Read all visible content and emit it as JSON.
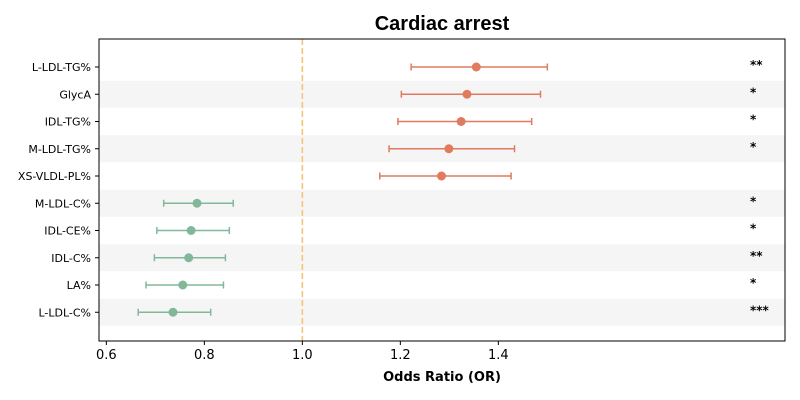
{
  "chart_data": {
    "type": "forest",
    "title": "Cardiac arrest",
    "xlabel": "Odds Ratio (OR)",
    "xlim": [
      0.585,
      1.985
    ],
    "xticks": [
      "0.6",
      "0.8",
      "1.0",
      "1.2",
      "1.4"
    ],
    "reference_line": 1.0,
    "colors": {
      "positive": "#e07b5f",
      "negative": "#82b89a",
      "reference": "#f5c37a",
      "band": "#f5f5f5"
    },
    "rows": [
      {
        "label": "L-LDL-TG%",
        "or": 1.355,
        "lower": 1.222,
        "upper": 1.5,
        "sig": "**"
      },
      {
        "label": "GlycA",
        "or": 1.336,
        "lower": 1.202,
        "upper": 1.486,
        "sig": "*"
      },
      {
        "label": "IDL-TG%",
        "or": 1.324,
        "lower": 1.195,
        "upper": 1.468,
        "sig": "*"
      },
      {
        "label": "M-LDL-TG%",
        "or": 1.299,
        "lower": 1.177,
        "upper": 1.433,
        "sig": "*"
      },
      {
        "label": "XS-VLDL-PL%",
        "or": 1.284,
        "lower": 1.158,
        "upper": 1.426,
        "sig": ""
      },
      {
        "label": "M-LDL-C%",
        "or": 0.785,
        "lower": 0.717,
        "upper": 0.859,
        "sig": "*"
      },
      {
        "label": "IDL-CE%",
        "or": 0.773,
        "lower": 0.703,
        "upper": 0.851,
        "sig": "*"
      },
      {
        "label": "IDL-C%",
        "or": 0.768,
        "lower": 0.698,
        "upper": 0.843,
        "sig": "**"
      },
      {
        "label": "LA%",
        "or": 0.756,
        "lower": 0.681,
        "upper": 0.839,
        "sig": "*"
      },
      {
        "label": "L-LDL-C%",
        "or": 0.736,
        "lower": 0.665,
        "upper": 0.813,
        "sig": "***"
      }
    ]
  }
}
